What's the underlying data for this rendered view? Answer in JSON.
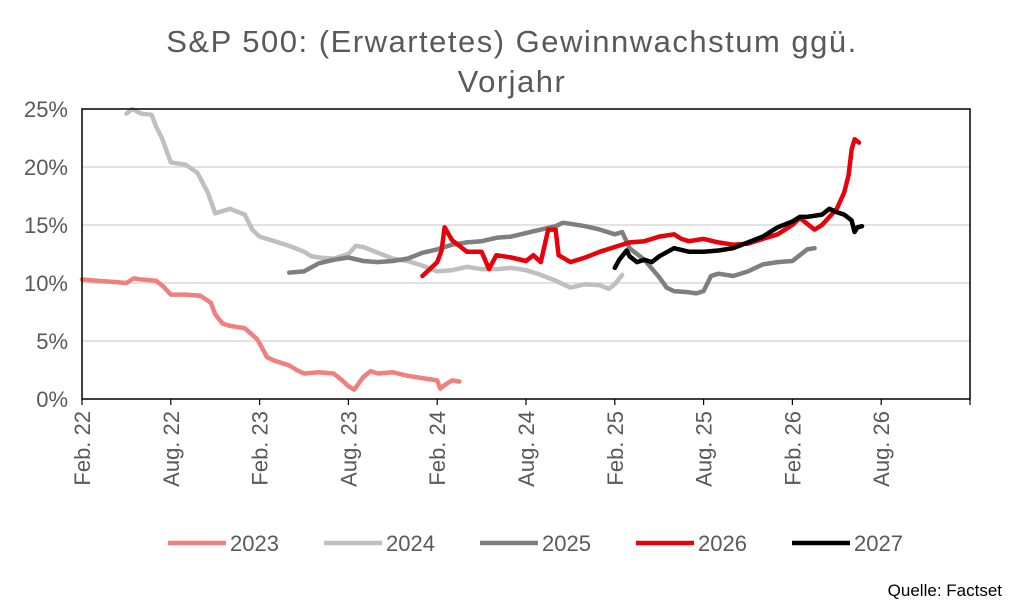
{
  "chart_data": {
    "type": "line",
    "title_lines": [
      "S&P 500: (Erwartetes) Gewinnwachstum ggü.",
      "Vorjahr"
    ],
    "source": "Quelle: Factset",
    "x_start": "Feb. 22",
    "x_ticks": [
      "Feb. 22",
      "Aug. 22",
      "Feb. 23",
      "Aug. 23",
      "Feb. 24",
      "Aug. 24",
      "Feb. 25",
      "Aug. 25",
      "Feb. 26",
      "Aug. 26"
    ],
    "y_ticks": [
      "0%",
      "5%",
      "10%",
      "15%",
      "20%",
      "25%"
    ],
    "ylim": [
      0,
      25
    ],
    "xlim_months": [
      0,
      60
    ],
    "grid": true,
    "legend_position": "bottom",
    "series": [
      {
        "name": "2023",
        "color": "#F08080",
        "points": [
          [
            0,
            10.3
          ],
          [
            1,
            10.2
          ],
          [
            2,
            10.1
          ],
          [
            3,
            10.0
          ],
          [
            3.5,
            10.4
          ],
          [
            4,
            10.3
          ],
          [
            5,
            10.2
          ],
          [
            5.5,
            9.7
          ],
          [
            6,
            9.0
          ],
          [
            7,
            9.0
          ],
          [
            8,
            8.9
          ],
          [
            8.7,
            8.3
          ],
          [
            9,
            7.3
          ],
          [
            9.5,
            6.5
          ],
          [
            10,
            6.3
          ],
          [
            11,
            6.1
          ],
          [
            11.8,
            5.2
          ],
          [
            12,
            4.8
          ],
          [
            12.5,
            3.6
          ],
          [
            13,
            3.3
          ],
          [
            14,
            2.9
          ],
          [
            14.5,
            2.5
          ],
          [
            15,
            2.2
          ],
          [
            16,
            2.3
          ],
          [
            17,
            2.2
          ],
          [
            17.5,
            1.7
          ],
          [
            18,
            1.1
          ],
          [
            18.4,
            0.8
          ],
          [
            19,
            1.9
          ],
          [
            19.5,
            2.4
          ],
          [
            20,
            2.2
          ],
          [
            21,
            2.3
          ],
          [
            22,
            2.0
          ],
          [
            23,
            1.8
          ],
          [
            24,
            1.6
          ],
          [
            24.2,
            0.9
          ],
          [
            24.5,
            1.2
          ],
          [
            25,
            1.6
          ],
          [
            25.5,
            1.5
          ]
        ]
      },
      {
        "name": "2024",
        "color": "#BFBFBF",
        "points": [
          [
            3,
            24.6
          ],
          [
            3.4,
            25.0
          ],
          [
            4,
            24.6
          ],
          [
            4.7,
            24.5
          ],
          [
            5,
            23.5
          ],
          [
            5.4,
            22.5
          ],
          [
            6,
            20.4
          ],
          [
            7,
            20.2
          ],
          [
            7.8,
            19.5
          ],
          [
            8.5,
            17.8
          ],
          [
            9,
            16.0
          ],
          [
            10,
            16.4
          ],
          [
            11,
            15.9
          ],
          [
            11.5,
            14.6
          ],
          [
            12,
            14.0
          ],
          [
            13,
            13.6
          ],
          [
            14,
            13.2
          ],
          [
            15,
            12.7
          ],
          [
            15.5,
            12.3
          ],
          [
            16,
            12.2
          ],
          [
            17,
            12.1
          ],
          [
            18,
            12.5
          ],
          [
            18.5,
            13.2
          ],
          [
            19,
            13.1
          ],
          [
            20,
            12.6
          ],
          [
            21,
            12.1
          ],
          [
            22,
            11.9
          ],
          [
            23,
            11.5
          ],
          [
            24,
            11.0
          ],
          [
            25,
            11.1
          ],
          [
            26,
            11.4
          ],
          [
            27,
            11.2
          ],
          [
            28,
            11.2
          ],
          [
            29,
            11.3
          ],
          [
            30,
            11.1
          ],
          [
            31,
            10.7
          ],
          [
            32,
            10.2
          ],
          [
            33,
            9.6
          ],
          [
            34,
            9.9
          ],
          [
            35,
            9.8
          ],
          [
            35.6,
            9.5
          ],
          [
            36,
            9.9
          ],
          [
            36.5,
            10.7
          ]
        ]
      },
      {
        "name": "2025",
        "color": "#7F7F7F",
        "points": [
          [
            14,
            10.9
          ],
          [
            15,
            11.0
          ],
          [
            16,
            11.7
          ],
          [
            17,
            12.0
          ],
          [
            18,
            12.2
          ],
          [
            19,
            11.9
          ],
          [
            20,
            11.8
          ],
          [
            21,
            11.9
          ],
          [
            22,
            12.1
          ],
          [
            23,
            12.6
          ],
          [
            24,
            12.9
          ],
          [
            25,
            13.3
          ],
          [
            26,
            13.5
          ],
          [
            27,
            13.6
          ],
          [
            28,
            13.9
          ],
          [
            29,
            14.0
          ],
          [
            30,
            14.3
          ],
          [
            31,
            14.6
          ],
          [
            32,
            14.9
          ],
          [
            32.5,
            15.2
          ],
          [
            33,
            15.1
          ],
          [
            34,
            14.9
          ],
          [
            35,
            14.6
          ],
          [
            36,
            14.2
          ],
          [
            36.5,
            14.4
          ],
          [
            37,
            13.0
          ],
          [
            38,
            12.0
          ],
          [
            39,
            10.5
          ],
          [
            39.5,
            9.6
          ],
          [
            40,
            9.3
          ],
          [
            41,
            9.2
          ],
          [
            41.5,
            9.1
          ],
          [
            42,
            9.3
          ],
          [
            42.5,
            10.6
          ],
          [
            43,
            10.8
          ],
          [
            44,
            10.6
          ],
          [
            45,
            11.0
          ],
          [
            46,
            11.6
          ],
          [
            47,
            11.8
          ],
          [
            48,
            11.9
          ],
          [
            48.5,
            12.4
          ],
          [
            49,
            12.9
          ],
          [
            49.5,
            13.0
          ]
        ]
      },
      {
        "name": "2026",
        "color": "#E8000B",
        "points": [
          [
            23,
            10.6
          ],
          [
            23.5,
            11.2
          ],
          [
            24,
            11.8
          ],
          [
            24.3,
            12.8
          ],
          [
            24.5,
            14.8
          ],
          [
            25,
            13.7
          ],
          [
            25.5,
            13.2
          ],
          [
            26,
            12.7
          ],
          [
            27,
            12.7
          ],
          [
            27.5,
            11.2
          ],
          [
            28,
            12.4
          ],
          [
            29,
            12.2
          ],
          [
            30,
            11.9
          ],
          [
            30.5,
            12.4
          ],
          [
            31,
            11.8
          ],
          [
            31.5,
            14.6
          ],
          [
            32,
            14.6
          ],
          [
            32.2,
            12.4
          ],
          [
            33,
            11.8
          ],
          [
            34,
            12.2
          ],
          [
            35,
            12.7
          ],
          [
            36,
            13.1
          ],
          [
            37,
            13.5
          ],
          [
            38,
            13.6
          ],
          [
            39,
            14.0
          ],
          [
            40,
            14.2
          ],
          [
            40.5,
            13.8
          ],
          [
            41,
            13.6
          ],
          [
            42,
            13.8
          ],
          [
            43,
            13.5
          ],
          [
            44,
            13.3
          ],
          [
            45,
            13.4
          ],
          [
            46,
            13.8
          ],
          [
            47,
            14.2
          ],
          [
            48,
            15.0
          ],
          [
            48.5,
            15.6
          ],
          [
            49,
            15.1
          ],
          [
            49.5,
            14.6
          ],
          [
            50,
            15.0
          ],
          [
            51,
            16.4
          ],
          [
            51.5,
            17.8
          ],
          [
            51.8,
            19.3
          ],
          [
            52,
            21.5
          ],
          [
            52.2,
            22.4
          ],
          [
            52.5,
            22.1
          ]
        ]
      },
      {
        "name": "2027",
        "color": "#000000",
        "points": [
          [
            36,
            11.3
          ],
          [
            36.3,
            12.0
          ],
          [
            36.8,
            12.8
          ],
          [
            37,
            12.3
          ],
          [
            37.5,
            11.8
          ],
          [
            38,
            12.0
          ],
          [
            38.5,
            11.8
          ],
          [
            39,
            12.3
          ],
          [
            40,
            13.0
          ],
          [
            41,
            12.7
          ],
          [
            42,
            12.7
          ],
          [
            43,
            12.8
          ],
          [
            44,
            13.0
          ],
          [
            45,
            13.5
          ],
          [
            46,
            14.0
          ],
          [
            47,
            14.8
          ],
          [
            48,
            15.3
          ],
          [
            48.5,
            15.7
          ],
          [
            49,
            15.7
          ],
          [
            50,
            15.9
          ],
          [
            50.5,
            16.4
          ],
          [
            51,
            16.1
          ],
          [
            51.5,
            15.9
          ],
          [
            52,
            15.4
          ],
          [
            52.2,
            14.4
          ],
          [
            52.4,
            14.8
          ],
          [
            52.7,
            14.9
          ]
        ]
      }
    ]
  }
}
